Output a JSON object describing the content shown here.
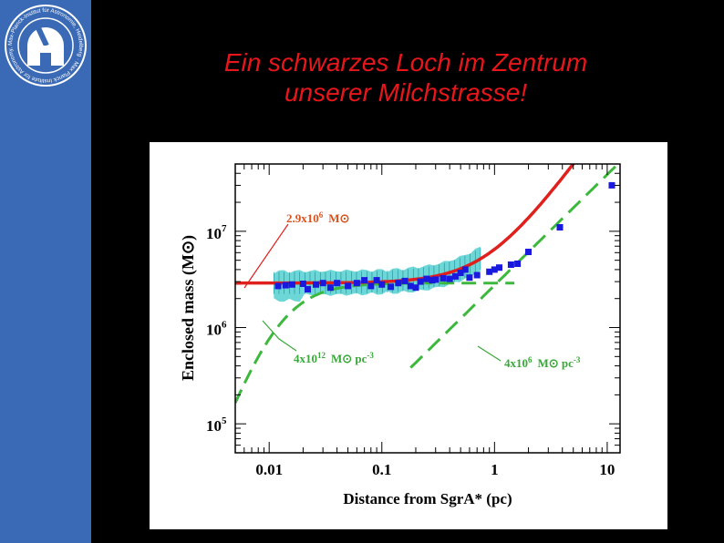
{
  "title": {
    "line1": "Ein schwarzes Loch im Zentrum",
    "line2": "unserer Milchstrasse!"
  },
  "logo": {
    "ring_text": "Max-Planck-Institut für Astronomie, Heidelberg · Max Planck Institute for Astronomy, Heidelberg"
  },
  "colors": {
    "sidebar": "#3a6ab5",
    "title": "#e8161b",
    "red_fit": "#e0201c",
    "green_models": "#3cb83c",
    "data_points": "#1a1adf",
    "error_band": "#3cc8c8",
    "annotation_red": "#d9531e",
    "annotation_green": "#3aa83a"
  },
  "chart_data": {
    "type": "scatter",
    "xlabel": "Distance from SgrA* (pc)",
    "ylabel": "Enclosed mass (M⊙)",
    "xscale": "log",
    "yscale": "log",
    "xlim": [
      0.005,
      13
    ],
    "ylim": [
      50000,
      50000000
    ],
    "xticks": [
      0.01,
      0.1,
      1,
      10
    ],
    "xtick_labels": [
      "0.01",
      "0.1",
      "1",
      "10"
    ],
    "yticks": [
      100000,
      1000000,
      10000000
    ],
    "ytick_labels": [
      {
        "base": "10",
        "exp": "5"
      },
      {
        "base": "10",
        "exp": "6"
      },
      {
        "base": "10",
        "exp": "7"
      }
    ],
    "annotations": [
      {
        "text": "2.9x10",
        "exp": "6",
        "unit": "M⊙",
        "color": "red"
      },
      {
        "text": "4x10",
        "exp": "12",
        "unit": "M⊙ pc",
        "unit_exp": "-3",
        "color": "green"
      },
      {
        "text": "4x10",
        "exp": "6",
        "unit": "M⊙ pc",
        "unit_exp": "-3",
        "color": "green"
      }
    ],
    "series": [
      {
        "values": [
          [
            0.012,
            2700000.0
          ],
          [
            0.014,
            2750000.0
          ],
          [
            0.016,
            2800000.0
          ],
          [
            0.02,
            2850000.0
          ],
          [
            0.022,
            2500000.0
          ],
          [
            0.026,
            2800000.0
          ],
          [
            0.03,
            2900000.0
          ],
          [
            0.035,
            2600000.0
          ],
          [
            0.04,
            2900000.0
          ],
          [
            0.05,
            2700000.0
          ],
          [
            0.06,
            2900000.0
          ],
          [
            0.07,
            3100000.0
          ],
          [
            0.08,
            2700000.0
          ],
          [
            0.09,
            3100000.0
          ],
          [
            0.1,
            2800000.0
          ],
          [
            0.12,
            2650000.0
          ],
          [
            0.14,
            2900000.0
          ],
          [
            0.16,
            3050000.0
          ],
          [
            0.18,
            2700000.0
          ],
          [
            0.2,
            2600000.0
          ],
          [
            0.22,
            3000000.0
          ],
          [
            0.25,
            3200000.0
          ],
          [
            0.28,
            3100000.0
          ],
          [
            0.3,
            3150000.0
          ],
          [
            0.35,
            3250000.0
          ],
          [
            0.4,
            3200000.0
          ],
          [
            0.45,
            3400000.0
          ],
          [
            0.5,
            3700000.0
          ],
          [
            0.55,
            4000000.0
          ],
          [
            0.6,
            3300000.0
          ],
          [
            0.7,
            3500000.0
          ],
          [
            0.9,
            3800000.0
          ],
          [
            1.0,
            4000000.0
          ],
          [
            1.1,
            4200000.0
          ],
          [
            1.4,
            4500000.0
          ],
          [
            1.6,
            4600000.0
          ],
          [
            2.0,
            6100000.0
          ],
          [
            3.8,
            11000000.0
          ],
          [
            11.0,
            30000000.0
          ]
        ]
      }
    ]
  }
}
